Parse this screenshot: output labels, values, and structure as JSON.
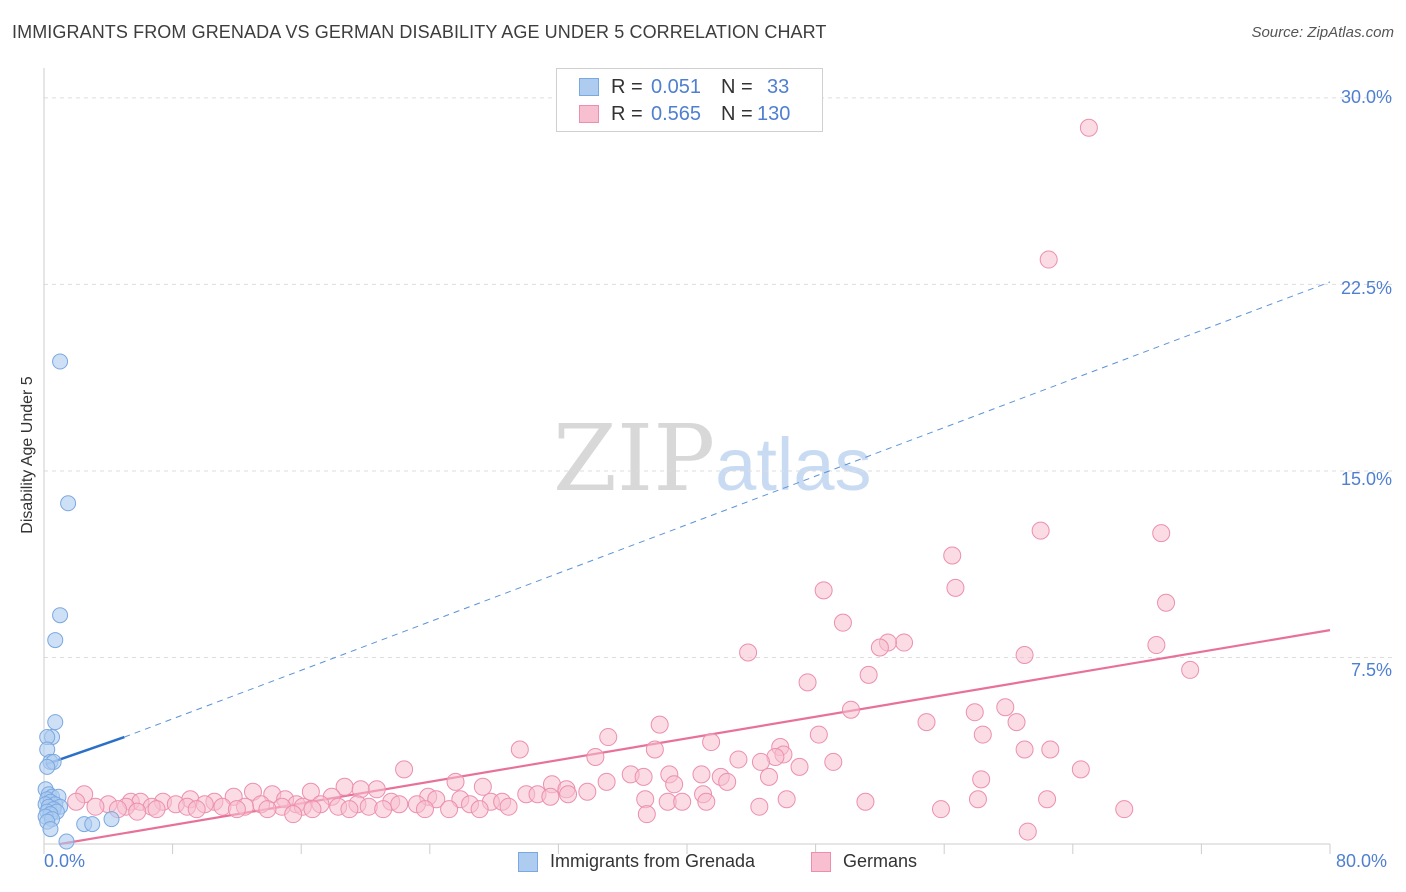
{
  "header": {
    "title": "IMMIGRANTS FROM GRENADA VS GERMAN DISABILITY AGE UNDER 5 CORRELATION CHART",
    "source": "Source: ZipAtlas.com"
  },
  "watermark": {
    "zip": "ZIP",
    "atlas": "atlas"
  },
  "colors": {
    "blue_fill": "#aecbf0",
    "blue_stroke": "#7aa8e0",
    "blue_line": "#2c6fc9",
    "pink_fill": "#f7bfd0",
    "pink_stroke": "#ec8fae",
    "pink_line": "#e8719a",
    "tick_text": "#4f7fd0",
    "grid": "#dddddd"
  },
  "legend": {
    "rows": [
      {
        "r_label": "R =",
        "r_value": "0.051",
        "n_label": "N =",
        "n_value": "33"
      },
      {
        "r_label": "R =",
        "r_value": "0.565",
        "n_label": "N =",
        "n_value": "130"
      }
    ]
  },
  "bottom_legend": {
    "blue": "Immigrants from Grenada",
    "pink": "Germans"
  },
  "chart_data": {
    "type": "scatter",
    "title": "IMMIGRANTS FROM GRENADA VS GERMAN DISABILITY AGE UNDER 5 CORRELATION CHART",
    "xlabel": "",
    "ylabel": "Disability Age Under 5",
    "xlim": [
      0,
      80
    ],
    "ylim": [
      0,
      30
    ],
    "y_ticks": [
      7.5,
      15.0,
      22.5,
      30.0
    ],
    "y_tick_labels": [
      "7.5%",
      "15.0%",
      "22.5%",
      "30.0%"
    ],
    "x_tick_labels": [
      "0.0%",
      "80.0%"
    ],
    "grid": "horizontal dashed",
    "legend_placement": "top-center and bottom",
    "series": [
      {
        "name": "Immigrants from Grenada",
        "color": "#aecbf0",
        "trend": {
          "x": [
            0.1,
            5.0
          ],
          "y": [
            3.2,
            4.3
          ],
          "style": "solid",
          "extended": {
            "x": [
              5.0,
              80.0
            ],
            "y": [
              4.3,
              22.6
            ],
            "style": "dashed"
          }
        },
        "points": [
          [
            1.0,
            19.4
          ],
          [
            1.5,
            13.7
          ],
          [
            1.0,
            9.2
          ],
          [
            0.7,
            8.2
          ],
          [
            0.7,
            4.9
          ],
          [
            0.5,
            4.3
          ],
          [
            0.2,
            4.3
          ],
          [
            0.2,
            3.8
          ],
          [
            0.4,
            3.3
          ],
          [
            0.6,
            3.3
          ],
          [
            0.2,
            3.1
          ],
          [
            0.1,
            2.2
          ],
          [
            0.3,
            2.0
          ],
          [
            0.5,
            1.9
          ],
          [
            0.9,
            1.9
          ],
          [
            0.2,
            1.8
          ],
          [
            0.4,
            1.7
          ],
          [
            0.7,
            1.6
          ],
          [
            0.1,
            1.6
          ],
          [
            1.0,
            1.5
          ],
          [
            0.3,
            1.5
          ],
          [
            0.6,
            1.4
          ],
          [
            0.2,
            1.3
          ],
          [
            0.8,
            1.3
          ],
          [
            0.4,
            1.2
          ],
          [
            0.1,
            1.1
          ],
          [
            0.5,
            1.0
          ],
          [
            4.2,
            1.0
          ],
          [
            0.2,
            0.9
          ],
          [
            2.5,
            0.8
          ],
          [
            3.0,
            0.8
          ],
          [
            0.4,
            0.6
          ],
          [
            1.4,
            0.1
          ]
        ]
      },
      {
        "name": "Germans",
        "color": "#f7bfd0",
        "trend": {
          "x": [
            1.0,
            80.0
          ],
          "y": [
            0.0,
            8.6
          ],
          "style": "solid"
        },
        "points": [
          [
            65.0,
            28.8
          ],
          [
            62.5,
            23.5
          ],
          [
            62.0,
            12.6
          ],
          [
            69.5,
            12.5
          ],
          [
            56.5,
            11.6
          ],
          [
            56.7,
            10.3
          ],
          [
            48.5,
            10.2
          ],
          [
            69.8,
            9.7
          ],
          [
            49.7,
            8.9
          ],
          [
            53.5,
            8.1
          ],
          [
            52.5,
            8.1
          ],
          [
            52.0,
            7.9
          ],
          [
            69.2,
            8.0
          ],
          [
            43.8,
            7.7
          ],
          [
            61.0,
            7.6
          ],
          [
            51.3,
            6.8
          ],
          [
            71.3,
            7.0
          ],
          [
            47.5,
            6.5
          ],
          [
            50.2,
            5.4
          ],
          [
            57.9,
            5.3
          ],
          [
            59.8,
            5.5
          ],
          [
            38.3,
            4.8
          ],
          [
            54.9,
            4.9
          ],
          [
            60.5,
            4.9
          ],
          [
            58.4,
            4.4
          ],
          [
            48.2,
            4.4
          ],
          [
            35.1,
            4.3
          ],
          [
            41.5,
            4.1
          ],
          [
            45.8,
            3.9
          ],
          [
            29.6,
            3.8
          ],
          [
            38.0,
            3.8
          ],
          [
            61.0,
            3.8
          ],
          [
            62.6,
            3.8
          ],
          [
            46.0,
            3.6
          ],
          [
            45.5,
            3.5
          ],
          [
            34.3,
            3.5
          ],
          [
            43.2,
            3.4
          ],
          [
            49.1,
            3.3
          ],
          [
            44.6,
            3.3
          ],
          [
            47.0,
            3.1
          ],
          [
            64.5,
            3.0
          ],
          [
            22.4,
            3.0
          ],
          [
            36.5,
            2.8
          ],
          [
            38.9,
            2.8
          ],
          [
            40.9,
            2.8
          ],
          [
            37.3,
            2.7
          ],
          [
            42.1,
            2.7
          ],
          [
            45.1,
            2.7
          ],
          [
            58.3,
            2.6
          ],
          [
            35.0,
            2.5
          ],
          [
            42.5,
            2.5
          ],
          [
            25.6,
            2.5
          ],
          [
            39.2,
            2.4
          ],
          [
            31.6,
            2.4
          ],
          [
            27.3,
            2.3
          ],
          [
            18.7,
            2.3
          ],
          [
            20.7,
            2.2
          ],
          [
            32.5,
            2.2
          ],
          [
            19.7,
            2.2
          ],
          [
            13.0,
            2.1
          ],
          [
            16.6,
            2.1
          ],
          [
            33.8,
            2.1
          ],
          [
            14.2,
            2.0
          ],
          [
            30.0,
            2.0
          ],
          [
            30.7,
            2.0
          ],
          [
            32.6,
            2.0
          ],
          [
            2.5,
            2.0
          ],
          [
            41.0,
            2.0
          ],
          [
            17.9,
            1.9
          ],
          [
            23.9,
            1.9
          ],
          [
            11.8,
            1.9
          ],
          [
            31.5,
            1.9
          ],
          [
            15.0,
            1.8
          ],
          [
            24.4,
            1.8
          ],
          [
            25.9,
            1.8
          ],
          [
            37.4,
            1.8
          ],
          [
            9.1,
            1.8
          ],
          [
            5.4,
            1.7
          ],
          [
            6.0,
            1.7
          ],
          [
            7.4,
            1.7
          ],
          [
            10.6,
            1.7
          ],
          [
            21.6,
            1.7
          ],
          [
            2.0,
            1.7
          ],
          [
            27.8,
            1.7
          ],
          [
            28.5,
            1.7
          ],
          [
            38.8,
            1.7
          ],
          [
            39.7,
            1.7
          ],
          [
            41.2,
            1.7
          ],
          [
            46.2,
            1.8
          ],
          [
            51.1,
            1.7
          ],
          [
            58.1,
            1.8
          ],
          [
            62.4,
            1.8
          ],
          [
            4.0,
            1.6
          ],
          [
            8.2,
            1.6
          ],
          [
            10.0,
            1.6
          ],
          [
            13.5,
            1.6
          ],
          [
            15.7,
            1.6
          ],
          [
            17.2,
            1.6
          ],
          [
            19.5,
            1.6
          ],
          [
            22.1,
            1.6
          ],
          [
            23.2,
            1.6
          ],
          [
            26.5,
            1.6
          ],
          [
            3.2,
            1.5
          ],
          [
            5.1,
            1.5
          ],
          [
            6.7,
            1.5
          ],
          [
            8.9,
            1.5
          ],
          [
            11.1,
            1.5
          ],
          [
            12.5,
            1.5
          ],
          [
            14.8,
            1.5
          ],
          [
            16.1,
            1.5
          ],
          [
            18.3,
            1.5
          ],
          [
            20.2,
            1.5
          ],
          [
            28.9,
            1.5
          ],
          [
            4.6,
            1.4
          ],
          [
            7.0,
            1.4
          ],
          [
            9.5,
            1.4
          ],
          [
            12.0,
            1.4
          ],
          [
            13.9,
            1.4
          ],
          [
            16.7,
            1.4
          ],
          [
            19.0,
            1.4
          ],
          [
            21.1,
            1.4
          ],
          [
            23.7,
            1.4
          ],
          [
            25.2,
            1.4
          ],
          [
            27.1,
            1.4
          ],
          [
            44.5,
            1.5
          ],
          [
            55.8,
            1.4
          ],
          [
            5.8,
            1.3
          ],
          [
            15.5,
            1.2
          ],
          [
            67.2,
            1.4
          ],
          [
            37.5,
            1.2
          ],
          [
            61.2,
            0.5
          ]
        ]
      }
    ]
  }
}
